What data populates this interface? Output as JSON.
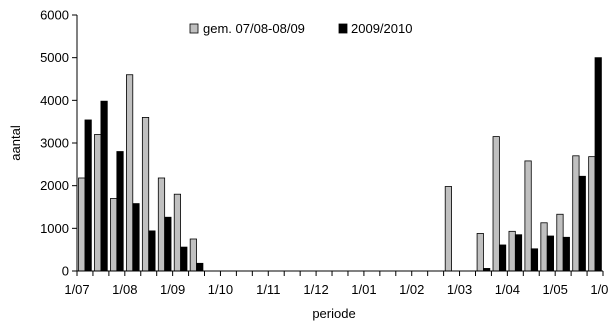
{
  "chart_data": {
    "type": "bar",
    "xlabel": "periode",
    "ylabel": "aantal",
    "ylim": [
      0,
      6000
    ],
    "yticks": [
      0,
      1000,
      2000,
      3000,
      4000,
      5000,
      6000
    ],
    "tick_labels": [
      "1/07",
      "1/08",
      "1/09",
      "1/10",
      "1/11",
      "1/12",
      "1/01",
      "1/02",
      "1/03",
      "1/04",
      "1/05",
      "1/06"
    ],
    "grid": false,
    "legend_position": "top-center",
    "series": [
      {
        "name": "gem. 07/08-08/09",
        "color": "#c0c0c0",
        "values": [
          2180,
          3200,
          1700,
          4600,
          3600,
          2180,
          1800,
          750,
          0,
          0,
          0,
          0,
          0,
          0,
          0,
          0,
          0,
          0,
          0,
          0,
          0,
          0,
          0,
          1980,
          0,
          880,
          3150,
          930,
          2580,
          1130,
          1330,
          2700,
          2680
        ]
      },
      {
        "name": "2009/2010",
        "color": "#000000",
        "values": [
          3540,
          3980,
          2800,
          1580,
          940,
          1260,
          560,
          180,
          0,
          0,
          0,
          0,
          0,
          0,
          0,
          0,
          0,
          0,
          0,
          0,
          0,
          0,
          0,
          0,
          0,
          60,
          610,
          850,
          520,
          820,
          790,
          2220,
          5000
        ]
      }
    ]
  }
}
